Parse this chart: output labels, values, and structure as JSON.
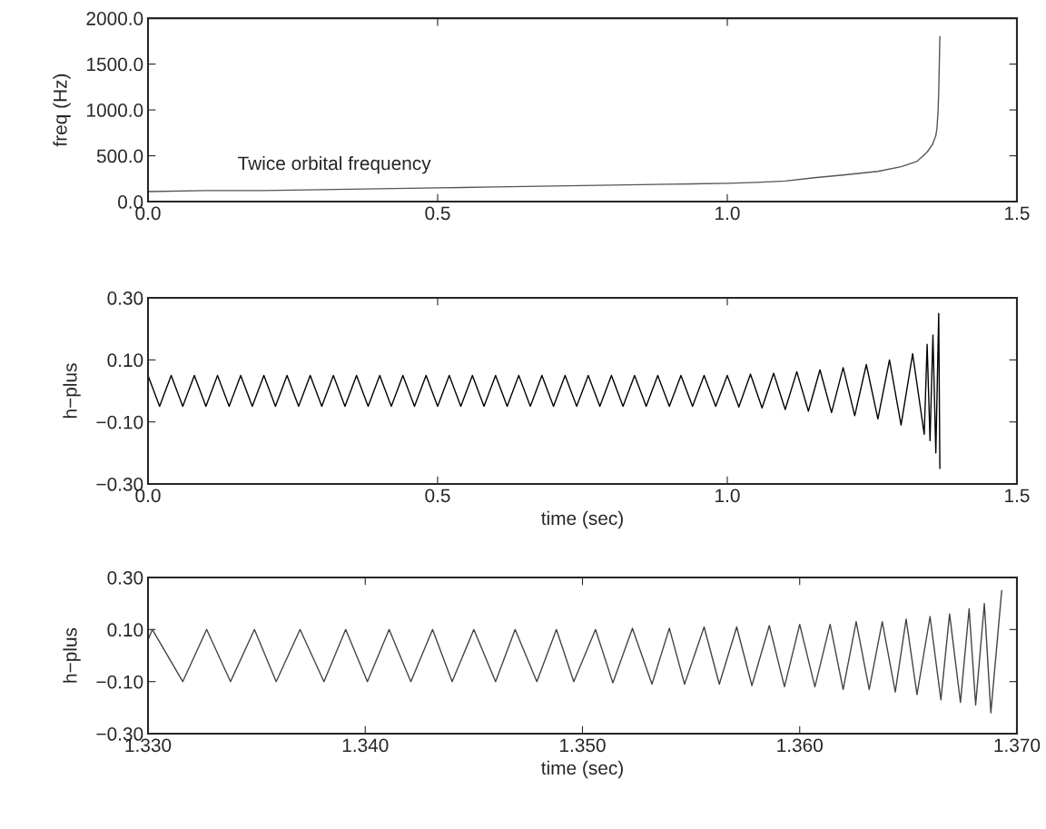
{
  "chart_data": [
    {
      "type": "line",
      "ylabel": "freq (Hz)",
      "x": [
        0,
        0.1,
        0.2,
        0.3,
        0.4,
        0.5,
        0.6,
        0.7,
        0.8,
        0.9,
        1.0,
        1.05,
        1.1,
        1.15,
        1.2,
        1.26,
        1.3,
        1.328,
        1.345,
        1.354,
        1.36,
        1.362,
        1.364,
        1.365,
        1.366,
        1.367
      ],
      "series": [
        {
          "color": "#555555",
          "values": [
            110,
            120,
            120,
            130,
            140,
            150,
            160,
            170,
            180,
            190,
            200,
            210,
            225,
            260,
            290,
            330,
            380,
            440,
            540,
            620,
            720,
            800,
            1000,
            1200,
            1500,
            1800
          ]
        }
      ],
      "xlim": [
        0,
        1.5
      ],
      "ylim": [
        0,
        2000
      ],
      "xticks": [
        {
          "value": 0,
          "label": "0.0"
        },
        {
          "value": 0.5,
          "label": "0.5"
        },
        {
          "value": 1.0,
          "label": "1.0"
        },
        {
          "value": 1.5,
          "label": "1.5"
        }
      ],
      "yticks": [
        {
          "value": 0,
          "label": "0.0"
        },
        {
          "value": 500,
          "label": "500.0"
        },
        {
          "value": 1000,
          "label": "1000.0"
        },
        {
          "value": 1500,
          "label": "1500.0"
        },
        {
          "value": 2000,
          "label": "2000.0"
        }
      ],
      "annotations": [
        "Twice orbital frequency"
      ]
    },
    {
      "type": "line",
      "xlabel": "time (sec)",
      "ylabel": "h−plus",
      "x": [
        0,
        0.02,
        0.04,
        0.06,
        0.08,
        0.1,
        0.12,
        0.14,
        0.16,
        0.18,
        0.2,
        0.22,
        0.24,
        0.26,
        0.28,
        0.3,
        0.32,
        0.34,
        0.36,
        0.38,
        0.4,
        0.42,
        0.44,
        0.46,
        0.48,
        0.5,
        0.52,
        0.54,
        0.56,
        0.58,
        0.6,
        0.62,
        0.64,
        0.66,
        0.68,
        0.7,
        0.72,
        0.74,
        0.76,
        0.78,
        0.8,
        0.82,
        0.84,
        0.86,
        0.88,
        0.9,
        0.92,
        0.94,
        0.96,
        0.98,
        1.0,
        1.02,
        1.04,
        1.06,
        1.08,
        1.1,
        1.12,
        1.14,
        1.16,
        1.18,
        1.2,
        1.22,
        1.24,
        1.26,
        1.28,
        1.3,
        1.32,
        1.34,
        1.345,
        1.35,
        1.355,
        1.36,
        1.365,
        1.367
      ],
      "series": [
        {
          "color": "#000000",
          "values": [
            0.05,
            -0.05,
            0.05,
            -0.05,
            0.05,
            -0.05,
            0.05,
            -0.05,
            0.05,
            -0.05,
            0.05,
            -0.05,
            0.05,
            -0.05,
            0.05,
            -0.05,
            0.05,
            -0.05,
            0.05,
            -0.05,
            0.05,
            -0.05,
            0.05,
            -0.05,
            0.05,
            -0.05,
            0.05,
            -0.05,
            0.05,
            -0.05,
            0.05,
            -0.05,
            0.05,
            -0.05,
            0.05,
            -0.05,
            0.05,
            -0.05,
            0.05,
            -0.05,
            0.05,
            -0.05,
            0.05,
            -0.05,
            0.05,
            -0.05,
            0.05,
            -0.05,
            0.05,
            -0.05,
            0.05,
            -0.052,
            0.054,
            -0.055,
            0.057,
            -0.06,
            0.062,
            -0.065,
            0.068,
            -0.07,
            0.075,
            -0.08,
            0.085,
            -0.09,
            0.1,
            -0.11,
            0.12,
            -0.14,
            0.15,
            -0.16,
            0.18,
            -0.2,
            0.25,
            -0.25
          ]
        }
      ],
      "xlim": [
        0,
        1.5
      ],
      "ylim": [
        -0.3,
        0.3
      ],
      "xticks": [
        {
          "value": 0,
          "label": "0.0"
        },
        {
          "value": 0.5,
          "label": "0.5"
        },
        {
          "value": 1.0,
          "label": "1.0"
        },
        {
          "value": 1.5,
          "label": "1.5"
        }
      ],
      "yticks": [
        {
          "value": -0.3,
          "label": "−0.30"
        },
        {
          "value": -0.1,
          "label": "−0.10"
        },
        {
          "value": 0.1,
          "label": "0.10"
        },
        {
          "value": 0.3,
          "label": "0.30"
        }
      ]
    },
    {
      "type": "line",
      "xlabel": "time (sec)",
      "ylabel": "h−plus",
      "x": [
        1.33,
        1.3302,
        1.3316,
        1.3327,
        1.3338,
        1.3349,
        1.3359,
        1.337,
        1.3381,
        1.3391,
        1.3401,
        1.3411,
        1.3421,
        1.3431,
        1.344,
        1.345,
        1.346,
        1.3469,
        1.3479,
        1.3488,
        1.3496,
        1.3506,
        1.3514,
        1.3523,
        1.3532,
        1.354,
        1.3547,
        1.3556,
        1.3563,
        1.3571,
        1.3578,
        1.3586,
        1.3593,
        1.36,
        1.3607,
        1.3614,
        1.362,
        1.3626,
        1.3632,
        1.3638,
        1.3644,
        1.3649,
        1.3654,
        1.366,
        1.3665,
        1.3669,
        1.3674,
        1.3678,
        1.3681,
        1.3685,
        1.3688,
        1.3693
      ],
      "series": [
        {
          "color": "#444444",
          "values": [
            0.06,
            0.1,
            -0.1,
            0.1,
            -0.1,
            0.1,
            -0.1,
            0.1,
            -0.1,
            0.1,
            -0.1,
            0.1,
            -0.1,
            0.1,
            -0.1,
            0.1,
            -0.1,
            0.1,
            -0.1,
            0.1,
            -0.1,
            0.1,
            -0.105,
            0.105,
            -0.11,
            0.105,
            -0.11,
            0.11,
            -0.11,
            0.11,
            -0.115,
            0.115,
            -0.12,
            0.12,
            -0.12,
            0.12,
            -0.13,
            0.13,
            -0.13,
            0.13,
            -0.14,
            0.14,
            -0.15,
            0.15,
            -0.17,
            0.16,
            -0.18,
            0.18,
            -0.19,
            0.2,
            -0.22,
            0.25
          ]
        }
      ],
      "xlim": [
        1.33,
        1.37
      ],
      "ylim": [
        -0.3,
        0.3
      ],
      "xticks": [
        {
          "value": 1.33,
          "label": "1.330"
        },
        {
          "value": 1.34,
          "label": "1.340"
        },
        {
          "value": 1.35,
          "label": "1.350"
        },
        {
          "value": 1.36,
          "label": "1.360"
        },
        {
          "value": 1.37,
          "label": "1.370"
        }
      ],
      "yticks": [
        {
          "value": -0.3,
          "label": "−0.30"
        },
        {
          "value": -0.1,
          "label": "−0.10"
        },
        {
          "value": 0.1,
          "label": "0.10"
        },
        {
          "value": 0.3,
          "label": "0.30"
        }
      ]
    }
  ]
}
